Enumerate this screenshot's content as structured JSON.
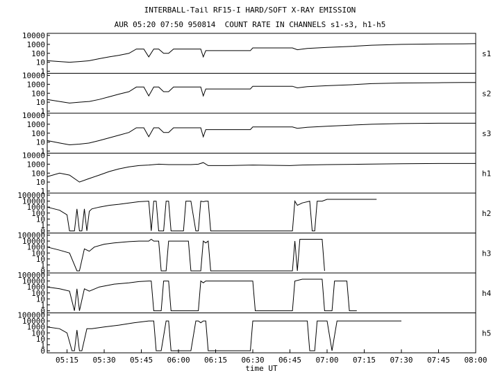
{
  "chart_data": {
    "type": "line",
    "title": "INTERBALL-Tail RF15-I HARD/SOFT X-RAY EMISSION",
    "subtitle": "AUR 05:20 07:50 950814  COUNT RATE IN CHANNELS s1-s3, h1-h5",
    "xlabel": "time UT",
    "x_ticks": [
      "05:15",
      "05:30",
      "05:45",
      "06:00",
      "06:15",
      "06:30",
      "06:45",
      "07:00",
      "07:15",
      "07:30",
      "07:45",
      "08:00"
    ],
    "xlim": [
      "05:07",
      "08:00"
    ],
    "y_scale": "log",
    "grid": false,
    "panels": [
      {
        "name": "s1",
        "y_ticks": [
          "10000",
          "1000",
          "100",
          "10",
          "1"
        ],
        "ylim": [
          1,
          10000
        ],
        "x": [
          "05:07",
          "05:12",
          "05:16",
          "05:20",
          "05:24",
          "05:28",
          "05:32",
          "05:36",
          "05:40",
          "05:43",
          "05:46",
          "05:48",
          "05:50",
          "05:52",
          "05:54",
          "05:56",
          "05:58",
          "06:04",
          "06:09",
          "06:10",
          "06:11",
          "06:12",
          "06:20",
          "06:29",
          "06:30",
          "06:40",
          "06:46",
          "06:48",
          "06:52",
          "07:00",
          "07:10",
          "07:18",
          "07:30",
          "07:45",
          "07:55",
          "08:00"
        ],
        "y": [
          15,
          12,
          10,
          12,
          15,
          25,
          40,
          60,
          100,
          300,
          300,
          40,
          300,
          300,
          100,
          100,
          300,
          300,
          300,
          40,
          200,
          200,
          200,
          200,
          400,
          400,
          400,
          250,
          350,
          450,
          600,
          800,
          1000,
          1100,
          1150,
          1200
        ]
      },
      {
        "name": "s2",
        "y_ticks": [
          "10000",
          "1000",
          "100",
          "10",
          "1"
        ],
        "ylim": [
          1,
          10000
        ],
        "x": [
          "05:07",
          "05:12",
          "05:16",
          "05:20",
          "05:24",
          "05:28",
          "05:32",
          "05:36",
          "05:40",
          "05:43",
          "05:46",
          "05:48",
          "05:50",
          "05:52",
          "05:54",
          "05:56",
          "05:58",
          "06:04",
          "06:09",
          "06:10",
          "06:11",
          "06:12",
          "06:20",
          "06:29",
          "06:30",
          "06:40",
          "06:46",
          "06:48",
          "06:52",
          "07:00",
          "07:10",
          "07:18",
          "07:30",
          "07:45",
          "07:55",
          "08:00"
        ],
        "y": [
          20,
          12,
          8,
          10,
          12,
          20,
          40,
          80,
          150,
          500,
          500,
          50,
          500,
          500,
          150,
          150,
          500,
          500,
          500,
          50,
          300,
          300,
          300,
          300,
          600,
          600,
          600,
          400,
          550,
          700,
          900,
          1200,
          1400,
          1500,
          1600,
          1600
        ]
      },
      {
        "name": "s3",
        "y_ticks": [
          "10000",
          "1000",
          "100",
          "10",
          "1"
        ],
        "ylim": [
          1,
          10000
        ],
        "x": [
          "05:07",
          "05:12",
          "05:16",
          "05:20",
          "05:24",
          "05:28",
          "05:32",
          "05:36",
          "05:40",
          "05:43",
          "05:46",
          "05:48",
          "05:50",
          "05:52",
          "05:54",
          "05:56",
          "05:58",
          "06:04",
          "06:09",
          "06:10",
          "06:11",
          "06:12",
          "06:20",
          "06:29",
          "06:30",
          "06:40",
          "06:46",
          "06:48",
          "06:52",
          "07:00",
          "07:10",
          "07:18",
          "07:30",
          "07:45",
          "07:55",
          "08:00"
        ],
        "y": [
          15,
          8,
          5,
          6,
          8,
          15,
          30,
          60,
          120,
          400,
          400,
          40,
          400,
          400,
          120,
          120,
          400,
          400,
          400,
          40,
          250,
          250,
          250,
          250,
          500,
          500,
          500,
          350,
          450,
          600,
          800,
          1000,
          1200,
          1300,
          1300,
          1300
        ]
      },
      {
        "name": "h1",
        "y_ticks": [
          "10000",
          "1000",
          "100",
          "10",
          "1"
        ],
        "ylim": [
          1,
          10000
        ],
        "x": [
          "05:07",
          "05:12",
          "05:16",
          "05:20",
          "05:24",
          "05:28",
          "05:32",
          "05:36",
          "05:40",
          "05:44",
          "05:48",
          "05:52",
          "05:56",
          "06:00",
          "06:05",
          "06:08",
          "06:10",
          "06:12",
          "06:20",
          "06:30",
          "06:45",
          "06:50",
          "07:00",
          "07:15",
          "07:30",
          "07:45",
          "08:00"
        ],
        "y": [
          40,
          100,
          60,
          10,
          25,
          60,
          150,
          300,
          500,
          700,
          800,
          1000,
          900,
          900,
          900,
          1000,
          1500,
          700,
          700,
          800,
          700,
          800,
          900,
          1000,
          1100,
          1200,
          1200
        ]
      },
      {
        "name": "h2",
        "y_ticks": [
          "100000",
          "10000",
          "1000",
          "100",
          "10",
          "1",
          "0"
        ],
        "ylim": [
          0.1,
          100000
        ],
        "x": [
          "05:07",
          "05:12",
          "05:15",
          "05:16",
          "05:18",
          "05:19",
          "05:20",
          "05:21",
          "05:22",
          "05:23",
          "05:24",
          "05:25",
          "05:28",
          "05:32",
          "05:36",
          "05:40",
          "05:44",
          "05:48",
          "05:49",
          "05:50",
          "05:51",
          "05:52",
          "05:54",
          "05:55",
          "05:56",
          "05:57",
          "05:58",
          "06:02",
          "06:03",
          "06:05",
          "06:07",
          "06:08",
          "06:09",
          "06:10",
          "06:11",
          "06:12",
          "06:13",
          "06:14",
          "06:46",
          "06:47",
          "06:48",
          "06:50",
          "06:53",
          "06:54",
          "06:55",
          "06:56",
          "06:57",
          "06:58",
          "07:00",
          "07:02",
          "07:10",
          "07:20"
        ],
        "y": [
          1000,
          300,
          50,
          0.1,
          0.1,
          500,
          0.1,
          0.1,
          500,
          0.1,
          200,
          500,
          1000,
          2000,
          3000,
          5000,
          8000,
          10000,
          0.1,
          10000,
          10000,
          0.1,
          0.1,
          10000,
          10000,
          0.1,
          0.1,
          0.1,
          10000,
          10000,
          0.1,
          0.1,
          10000,
          8000,
          10000,
          10000,
          0.1,
          0.1,
          0.1,
          10000,
          2000,
          5000,
          10000,
          0.1,
          0.1,
          10000,
          10000,
          10000,
          20000,
          20000,
          20000,
          20000
        ]
      },
      {
        "name": "h3",
        "y_ticks": [
          "100000",
          "10000",
          "1000",
          "100",
          "10",
          "1",
          "0"
        ],
        "ylim": [
          0.1,
          100000
        ],
        "x": [
          "05:07",
          "05:12",
          "05:16",
          "05:19",
          "05:20",
          "05:22",
          "05:24",
          "05:26",
          "05:30",
          "05:34",
          "05:40",
          "05:44",
          "05:48",
          "05:49",
          "05:50",
          "05:52",
          "05:53",
          "05:55",
          "05:56",
          "05:57",
          "06:03",
          "06:04",
          "06:05",
          "06:09",
          "06:10",
          "06:11",
          "06:12",
          "06:13",
          "06:46",
          "06:47",
          "06:48",
          "06:49",
          "06:52",
          "06:54",
          "06:56",
          "06:58",
          "06:59"
        ],
        "y": [
          1000,
          300,
          100,
          0.1,
          0.1,
          500,
          200,
          1000,
          3000,
          5000,
          8000,
          10000,
          10000,
          20000,
          10000,
          10000,
          0.1,
          0.1,
          10000,
          10000,
          10000,
          10000,
          0.1,
          0.1,
          10000,
          5000,
          10000,
          0.1,
          0.1,
          10000,
          0.1,
          20000,
          20000,
          20000,
          20000,
          20000,
          0.1
        ]
      },
      {
        "name": "h4",
        "y_ticks": [
          "100000",
          "10000",
          "1000",
          "100",
          "10",
          "1",
          "0"
        ],
        "ylim": [
          0.1,
          100000
        ],
        "x": [
          "05:07",
          "05:12",
          "05:16",
          "05:18",
          "05:19",
          "05:20",
          "05:22",
          "05:24",
          "05:28",
          "05:34",
          "05:40",
          "05:44",
          "05:48",
          "05:49",
          "05:50",
          "05:53",
          "05:54",
          "05:56",
          "05:57",
          "06:08",
          "06:09",
          "06:10",
          "06:11",
          "06:12",
          "06:28",
          "06:30",
          "06:31",
          "06:46",
          "06:47",
          "06:50",
          "06:54",
          "06:58",
          "06:59",
          "07:02",
          "07:03",
          "07:08",
          "07:09",
          "07:12"
        ],
        "y": [
          1000,
          500,
          200,
          0.1,
          500,
          0.1,
          500,
          200,
          1000,
          3000,
          5000,
          8000,
          10000,
          10000,
          0.1,
          0.1,
          10000,
          10000,
          0.1,
          0.1,
          10000,
          5000,
          10000,
          10000,
          10000,
          10000,
          0.1,
          0.1,
          10000,
          20000,
          20000,
          20000,
          0.1,
          0.1,
          10000,
          10000,
          0.1,
          0.1
        ]
      },
      {
        "name": "h5",
        "y_ticks": [
          "100000",
          "10000",
          "1000",
          "100",
          "10",
          "1",
          "0"
        ],
        "ylim": [
          0.1,
          100000
        ],
        "x": [
          "05:07",
          "05:12",
          "05:15",
          "05:17",
          "05:18",
          "05:19",
          "05:20",
          "05:21",
          "05:23",
          "05:25",
          "05:30",
          "05:36",
          "05:42",
          "05:48",
          "05:50",
          "05:51",
          "05:53",
          "05:55",
          "05:56",
          "05:57",
          "06:05",
          "06:07",
          "06:08",
          "06:09",
          "06:10",
          "06:11",
          "06:12",
          "06:13",
          "06:14",
          "06:29",
          "06:30",
          "06:45",
          "06:52",
          "06:53",
          "06:55",
          "06:56",
          "06:58",
          "07:00",
          "07:02",
          "07:04",
          "07:10",
          "07:20",
          "07:30"
        ],
        "y": [
          1000,
          500,
          100,
          0.1,
          0.1,
          300,
          0.1,
          0.1,
          500,
          500,
          1000,
          2000,
          5000,
          10000,
          10000,
          0.1,
          0.1,
          10000,
          10000,
          0.1,
          0.1,
          10000,
          10000,
          5000,
          10000,
          10000,
          0.1,
          0.1,
          0.1,
          0.1,
          10000,
          10000,
          10000,
          0.1,
          0.1,
          10000,
          10000,
          10000,
          0.1,
          10000,
          10000,
          10000,
          10000
        ]
      }
    ]
  }
}
